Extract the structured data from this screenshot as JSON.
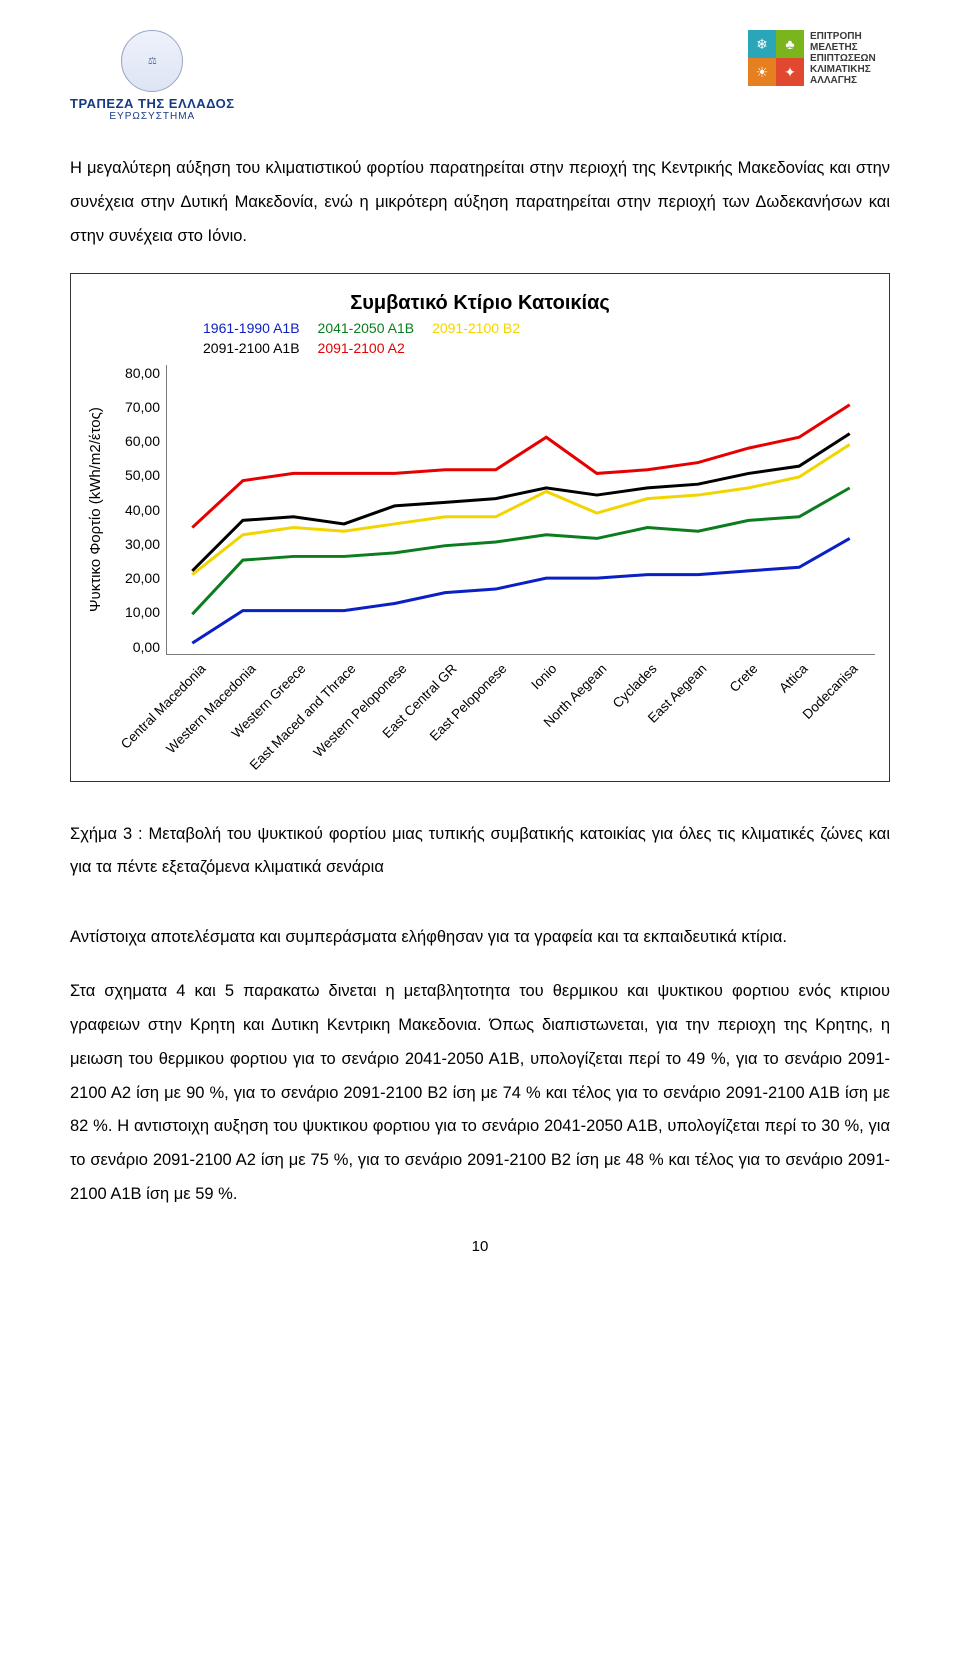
{
  "header": {
    "left": {
      "bank_title": "ΤΡΑΠΕΖΑ ΤΗΣ ΕΛΛΑΔΟΣ",
      "bank_sub": "ΕΥΡΩΣΥΣΤΗΜΑ"
    },
    "right": {
      "l1": "ΕΠΙΤΡΟΠΗ",
      "l2": "ΜΕΛΕΤΗΣ",
      "l3": "ΕΠΙΠΤΩΣΕΩΝ",
      "l4": "ΚΛΙΜΑΤΙΚΗΣ",
      "l5": "ΑΛΛΑΓΗΣ",
      "colors": [
        "#2aa6b8",
        "#7ab51d",
        "#e57f20",
        "#e0482f"
      ]
    }
  },
  "para1": "Η μεγαλύτερη αύξηση του κλιματιστικού φορτίου παρατηρείται στην περιοχή της Κεντρικής Μακεδονίας και στην συνέχεια στην Δυτική Μακεδονία, ενώ η μικρότερη αύξηση παρατηρείται στην περιοχή των Δωδεκανήσων και στην συνέχεια στο Ιόνιο.",
  "chart": {
    "title": "Συμβατικό Κτίριο Κατοικίας",
    "ylabel": "Ψυκτικο Φορτίο (kWh/m2/έτος)",
    "ylim": [
      0,
      80
    ],
    "ytick_step": 10,
    "yticks": [
      "80,00",
      "70,00",
      "60,00",
      "50,00",
      "40,00",
      "30,00",
      "20,00",
      "10,00",
      "0,00"
    ],
    "legend": [
      {
        "label": "1961-1990 Α1Β",
        "color": "#0a1fc4"
      },
      {
        "label": "2041-2050 Α1Β",
        "color": "#0b7d1f"
      },
      {
        "label": "2091-2100 Β2",
        "color": "#f2d500"
      },
      {
        "label": "2091-2100 Α1Β",
        "color": "#000000"
      },
      {
        "label": "2091-2100 Α2",
        "color": "#e60000"
      }
    ],
    "categories": [
      "Central Macedonia",
      "Western Macedonia",
      "Western Greece",
      "East Maced and Thrace",
      "Western Peloponese",
      "East Central GR",
      "East Peloponese",
      "Ionio",
      "North Aegean",
      "Cyclades",
      "East Aegean",
      "Crete",
      "Attica",
      "Dodecanisa"
    ],
    "series": {
      "s_1961_1990_A1B": {
        "color": "#0a1fc4",
        "values": [
          3,
          12,
          12,
          12,
          14,
          17,
          18,
          21,
          21,
          22,
          22,
          23,
          24,
          32
        ]
      },
      "s_2041_2050_A1B": {
        "color": "#0b7d1f",
        "values": [
          11,
          26,
          27,
          27,
          28,
          30,
          31,
          33,
          32,
          35,
          34,
          37,
          38,
          46
        ]
      },
      "s_2091_2100_B2": {
        "color": "#f2d500",
        "values": [
          22,
          33,
          35,
          34,
          36,
          38,
          38,
          45,
          39,
          43,
          44,
          46,
          49,
          58
        ]
      },
      "s_2091_2100_A1B": {
        "color": "#000000",
        "values": [
          23,
          37,
          38,
          36,
          41,
          42,
          43,
          46,
          44,
          46,
          47,
          50,
          52,
          61
        ]
      },
      "s_2091_2100_A2": {
        "color": "#e60000",
        "values": [
          35,
          48,
          50,
          50,
          50,
          51,
          51,
          60,
          50,
          51,
          53,
          57,
          60,
          69
        ]
      }
    },
    "line_width": 3,
    "background_color": "#ffffff",
    "border_color": "#7a7a7a"
  },
  "caption": "Σχήμα 3 : Μεταβολή του ψυκτικού φορτίου μιας τυπικής συμβατικής κατοικίας για όλες τις κλιματικές ζώνες και για τα πέντε εξεταζόμενα κλιματικά σενάρια",
  "para2": "Αντίστοιχα αποτελέσματα και συμπεράσματα ελήφθησαν για τα γραφεία και τα εκπαιδευτικά κτίρια.",
  "para3": "Στα σχηματα 4 και 5 παρακατω δινεται η μεταβλητοτητα του θερμικου και ψυκτικου φορτιου ενός κτιριου γραφειων στην Κρητη και Δυτικη Κεντρικη Μακεδονια. Όπως διαπιστωνεται, για την περιοχη της Κρητης, η μειωση του θερμικου φορτιου για το σενάριο 2041-2050 Α1Β, υπολογίζεται περί το 49 %, για το σενάριο 2091-2100 Α2 ίση με 90 %, για το σενάριο 2091-2100 Β2 ίση με 74 % και τέλος για το σενάριο 2091-2100 Α1Β ίση με 82 %. Η αντιστοιχη αυξηση του ψυκτικου φορτιου για το σενάριο 2041-2050 Α1Β, υπολογίζεται περί το 30 %, για το σενάριο 2091-2100 Α2 ίση με 75 %, για το σενάριο 2091-2100 Β2 ίση με 48 % και τέλος για το σενάριο 2091-2100 Α1Β ίση με 59 %.",
  "page_number": "10"
}
